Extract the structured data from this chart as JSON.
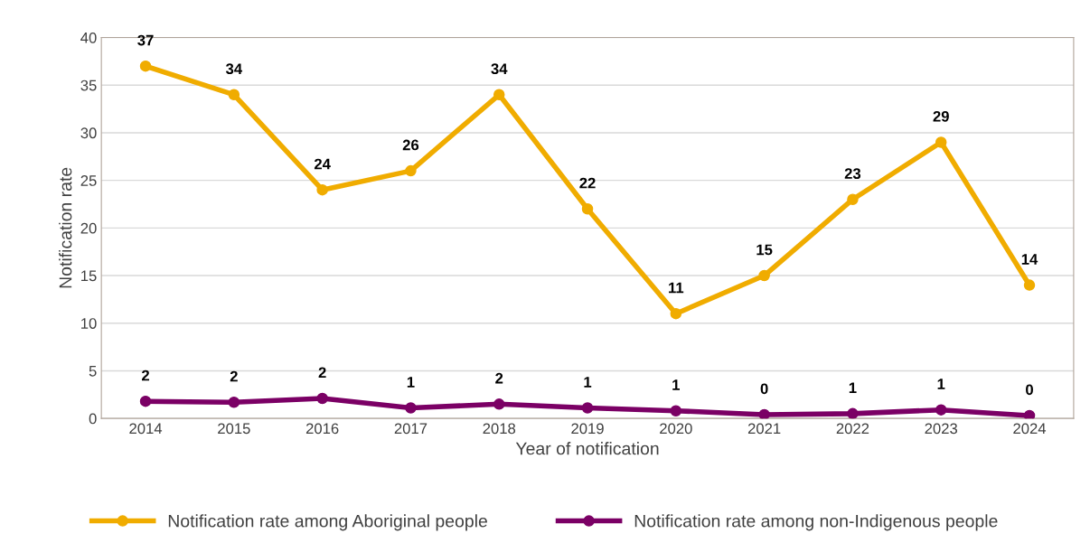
{
  "chart_data": {
    "type": "line",
    "xlabel": "Year of notification",
    "ylabel": "Notification rate",
    "categories": [
      "2014",
      "2015",
      "2016",
      "2017",
      "2018",
      "2019",
      "2020",
      "2021",
      "2022",
      "2023",
      "2024"
    ],
    "series": [
      {
        "name": "Notification rate among Aboriginal people",
        "color": "#f0ac00",
        "values": [
          37,
          34,
          24,
          26,
          34,
          22,
          11,
          15,
          23,
          29,
          14
        ]
      },
      {
        "name": "Notification rate among non-Indigenous people",
        "color": "#7b0065",
        "values": [
          1.8,
          1.7,
          2.1,
          1.1,
          1.5,
          1.1,
          0.8,
          0.4,
          0.5,
          0.9,
          0.3
        ],
        "value_labels": [
          "2",
          "2",
          "2",
          "1",
          "2",
          "1",
          "1",
          "0",
          "1",
          "1",
          "0"
        ]
      }
    ],
    "data_labels": true,
    "ylim": [
      0,
      40
    ],
    "yticks": [
      0,
      5,
      10,
      15,
      20,
      25,
      30,
      35,
      40
    ],
    "grid": "y",
    "legend": "bottom",
    "marker": "circle",
    "line_style": "solid"
  }
}
